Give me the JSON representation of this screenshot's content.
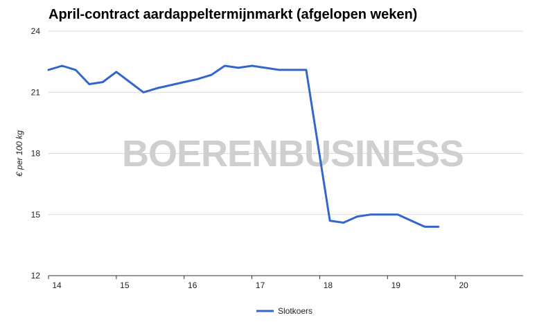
{
  "chart_data": {
    "type": "line",
    "title": "April-contract aardappeltermijnmarkt (afgelopen weken)",
    "ylabel": "€ per 100 kg",
    "xlabel": "",
    "xlim": [
      14,
      21
    ],
    "ylim": [
      12,
      24
    ],
    "xticks": [
      14,
      15,
      16,
      17,
      18,
      19,
      20
    ],
    "yticks": [
      12,
      15,
      18,
      21,
      24
    ],
    "grid": true,
    "legend_position": "bottom",
    "watermark": "BOERENBUSINESS",
    "series": [
      {
        "name": "Slotkoers",
        "color": "#3366cc",
        "x": [
          14.0,
          14.2,
          14.4,
          14.6,
          14.8,
          15.0,
          15.2,
          15.4,
          15.6,
          15.8,
          16.0,
          16.2,
          16.4,
          16.6,
          16.8,
          17.0,
          17.2,
          17.4,
          17.6,
          17.8,
          18.15,
          18.35,
          18.55,
          18.75,
          18.95,
          19.15,
          19.35,
          19.55,
          19.75
        ],
        "y": [
          22.1,
          22.3,
          22.1,
          21.4,
          21.5,
          22.0,
          21.5,
          21.0,
          21.2,
          21.35,
          21.5,
          21.65,
          21.85,
          22.3,
          22.2,
          22.3,
          22.2,
          22.1,
          22.1,
          22.1,
          14.7,
          14.6,
          14.9,
          15.0,
          15.0,
          15.0,
          14.7,
          14.4,
          14.4
        ]
      }
    ]
  }
}
